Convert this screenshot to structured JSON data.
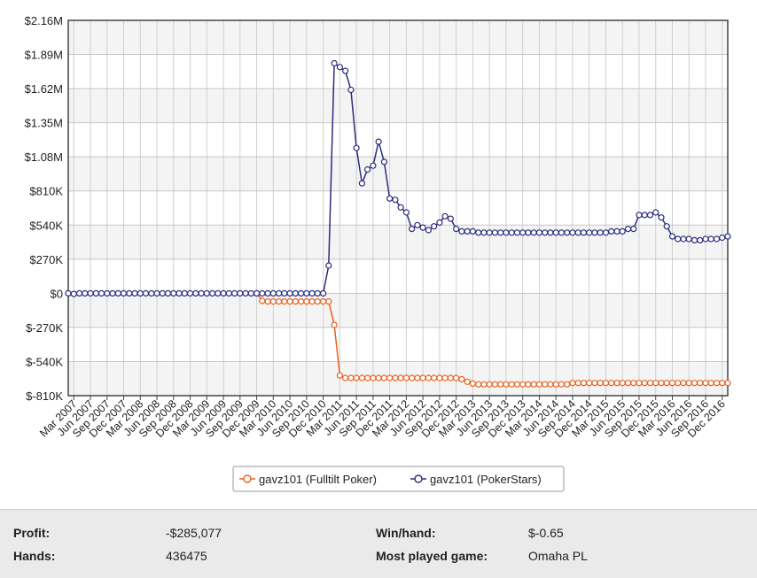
{
  "chart_data": {
    "type": "line",
    "y_ticks": [
      "$2.16M",
      "$1.89M",
      "$1.62M",
      "$1.35M",
      "$1.08M",
      "$810K",
      "$540K",
      "$270K",
      "$0",
      "$-270K",
      "$-540K",
      "$-810K"
    ],
    "y_tick_values": [
      2160000,
      1890000,
      1620000,
      1350000,
      1080000,
      810000,
      540000,
      270000,
      0,
      -270000,
      -540000,
      -810000
    ],
    "ylim": [
      -810000,
      2160000
    ],
    "x_labels": [
      "Mar 2007",
      "Jun 2007",
      "Sep 2007",
      "Dec 2007",
      "Mar 2008",
      "Jun 2008",
      "Sep 2008",
      "Dec 2008",
      "Mar 2009",
      "Jun 2009",
      "Sep 2009",
      "Dec 2009",
      "Mar 2010",
      "Jun 2010",
      "Sep 2010",
      "Dec 2010",
      "Mar 2011",
      "Jun 2011",
      "Sep 2011",
      "Dec 2011",
      "Mar 2012",
      "Jun 2012",
      "Sep 2012",
      "Dec 2012",
      "Mar 2013",
      "Jun 2013",
      "Sep 2013",
      "Dec 2013",
      "Mar 2014",
      "Jun 2014",
      "Sep 2014",
      "Dec 2014",
      "Mar 2015",
      "Jun 2015",
      "Sep 2015",
      "Dec 2015",
      "Mar 2016",
      "Jun 2016",
      "Sep 2016",
      "Dec 2016"
    ],
    "grid": true,
    "legend_position": "bottom",
    "series": [
      {
        "name": "gavz101 (Fulltilt Poker)",
        "color": "#e8601c",
        "points": [
          [
            "Dec 2009",
            0
          ],
          [
            "Jan 2010",
            -60000
          ],
          [
            "Feb 2010",
            -65000
          ],
          [
            "Mar 2010",
            -65000
          ],
          [
            "Apr 2010",
            -65000
          ],
          [
            "May 2010",
            -65000
          ],
          [
            "Jun 2010",
            -65000
          ],
          [
            "Jul 2010",
            -65000
          ],
          [
            "Aug 2010",
            -65000
          ],
          [
            "Sep 2010",
            -65000
          ],
          [
            "Oct 2010",
            -65000
          ],
          [
            "Nov 2010",
            -65000
          ],
          [
            "Dec 2010",
            -65000
          ],
          [
            "Jan 2011",
            -65000
          ],
          [
            "Feb 2011",
            -250000
          ],
          [
            "Mar 2011",
            -650000
          ],
          [
            "Apr 2011",
            -670000
          ],
          [
            "May 2011",
            -670000
          ],
          [
            "Jun 2011",
            -670000
          ],
          [
            "Jul 2011",
            -670000
          ],
          [
            "Aug 2011",
            -670000
          ],
          [
            "Sep 2011",
            -670000
          ],
          [
            "Oct 2011",
            -670000
          ],
          [
            "Nov 2011",
            -670000
          ],
          [
            "Dec 2011",
            -670000
          ],
          [
            "Jan 2012",
            -670000
          ],
          [
            "Feb 2012",
            -670000
          ],
          [
            "Mar 2012",
            -670000
          ],
          [
            "Apr 2012",
            -670000
          ],
          [
            "May 2012",
            -670000
          ],
          [
            "Jun 2012",
            -670000
          ],
          [
            "Jul 2012",
            -670000
          ],
          [
            "Aug 2012",
            -670000
          ],
          [
            "Sep 2012",
            -670000
          ],
          [
            "Oct 2012",
            -670000
          ],
          [
            "Nov 2012",
            -670000
          ],
          [
            "Dec 2012",
            -670000
          ],
          [
            "Jan 2013",
            -680000
          ],
          [
            "Feb 2013",
            -700000
          ],
          [
            "Mar 2013",
            -715000
          ],
          [
            "Apr 2013",
            -720000
          ],
          [
            "May 2013",
            -720000
          ],
          [
            "Jun 2013",
            -720000
          ],
          [
            "Jul 2013",
            -720000
          ],
          [
            "Aug 2013",
            -720000
          ],
          [
            "Sep 2013",
            -720000
          ],
          [
            "Oct 2013",
            -720000
          ],
          [
            "Nov 2013",
            -720000
          ],
          [
            "Dec 2013",
            -720000
          ],
          [
            "Jan 2014",
            -720000
          ],
          [
            "Feb 2014",
            -720000
          ],
          [
            "Mar 2014",
            -720000
          ],
          [
            "Apr 2014",
            -720000
          ],
          [
            "May 2014",
            -720000
          ],
          [
            "Jun 2014",
            -720000
          ],
          [
            "Jul 2014",
            -720000
          ],
          [
            "Aug 2014",
            -720000
          ],
          [
            "Sep 2014",
            -710000
          ],
          [
            "Oct 2014",
            -710000
          ],
          [
            "Nov 2014",
            -710000
          ],
          [
            "Dec 2014",
            -710000
          ],
          [
            "Jan 2015",
            -710000
          ],
          [
            "Feb 2015",
            -710000
          ],
          [
            "Mar 2015",
            -710000
          ],
          [
            "Apr 2015",
            -710000
          ],
          [
            "May 2015",
            -710000
          ],
          [
            "Jun 2015",
            -710000
          ],
          [
            "Jul 2015",
            -710000
          ],
          [
            "Aug 2015",
            -710000
          ],
          [
            "Sep 2015",
            -710000
          ],
          [
            "Oct 2015",
            -710000
          ],
          [
            "Nov 2015",
            -710000
          ],
          [
            "Dec 2015",
            -710000
          ],
          [
            "Jan 2016",
            -710000
          ],
          [
            "Feb 2016",
            -710000
          ],
          [
            "Mar 2016",
            -710000
          ],
          [
            "Apr 2016",
            -710000
          ],
          [
            "May 2016",
            -710000
          ],
          [
            "Jun 2016",
            -710000
          ],
          [
            "Jul 2016",
            -710000
          ],
          [
            "Aug 2016",
            -710000
          ],
          [
            "Sep 2016",
            -710000
          ],
          [
            "Oct 2016",
            -710000
          ],
          [
            "Nov 2016",
            -710000
          ],
          [
            "Dec 2016",
            -710000
          ],
          [
            "Jan 2017",
            -710000
          ]
        ]
      },
      {
        "name": "gavz101 (PokerStars)",
        "color": "#2b2c7c",
        "points": [
          [
            "Feb 2007",
            0
          ],
          [
            "Mar 2007",
            -5000
          ],
          [
            "Apr 2007",
            0
          ],
          [
            "May 2007",
            0
          ],
          [
            "Jun 2007",
            0
          ],
          [
            "Jul 2007",
            0
          ],
          [
            "Aug 2007",
            0
          ],
          [
            "Sep 2007",
            0
          ],
          [
            "Oct 2007",
            0
          ],
          [
            "Nov 2007",
            0
          ],
          [
            "Dec 2007",
            0
          ],
          [
            "Jan 2008",
            0
          ],
          [
            "Feb 2008",
            0
          ],
          [
            "Mar 2008",
            0
          ],
          [
            "Apr 2008",
            0
          ],
          [
            "May 2008",
            0
          ],
          [
            "Jun 2008",
            0
          ],
          [
            "Jul 2008",
            0
          ],
          [
            "Aug 2008",
            0
          ],
          [
            "Sep 2008",
            0
          ],
          [
            "Oct 2008",
            0
          ],
          [
            "Nov 2008",
            0
          ],
          [
            "Dec 2008",
            0
          ],
          [
            "Jan 2009",
            0
          ],
          [
            "Feb 2009",
            0
          ],
          [
            "Mar 2009",
            0
          ],
          [
            "Apr 2009",
            0
          ],
          [
            "May 2009",
            0
          ],
          [
            "Jun 2009",
            0
          ],
          [
            "Jul 2009",
            0
          ],
          [
            "Aug 2009",
            0
          ],
          [
            "Sep 2009",
            0
          ],
          [
            "Oct 2009",
            0
          ],
          [
            "Nov 2009",
            0
          ],
          [
            "Dec 2009",
            0
          ],
          [
            "Jan 2010",
            0
          ],
          [
            "Feb 2010",
            0
          ],
          [
            "Mar 2010",
            0
          ],
          [
            "Apr 2010",
            0
          ],
          [
            "May 2010",
            0
          ],
          [
            "Jun 2010",
            0
          ],
          [
            "Jul 2010",
            0
          ],
          [
            "Aug 2010",
            0
          ],
          [
            "Sep 2010",
            0
          ],
          [
            "Oct 2010",
            0
          ],
          [
            "Nov 2010",
            0
          ],
          [
            "Dec 2010",
            0
          ],
          [
            "Jan 2011",
            220000
          ],
          [
            "Feb 2011",
            1820000
          ],
          [
            "Mar 2011",
            1790000
          ],
          [
            "Apr 2011",
            1760000
          ],
          [
            "May 2011",
            1610000
          ],
          [
            "Jun 2011",
            1150000
          ],
          [
            "Jul 2011",
            870000
          ],
          [
            "Aug 2011",
            980000
          ],
          [
            "Sep 2011",
            1010000
          ],
          [
            "Oct 2011",
            1200000
          ],
          [
            "Nov 2011",
            1040000
          ],
          [
            "Dec 2011",
            750000
          ],
          [
            "Jan 2012",
            740000
          ],
          [
            "Feb 2012",
            680000
          ],
          [
            "Mar 2012",
            640000
          ],
          [
            "Apr 2012",
            510000
          ],
          [
            "May 2012",
            540000
          ],
          [
            "Jun 2012",
            520000
          ],
          [
            "Jul 2012",
            500000
          ],
          [
            "Aug 2012",
            530000
          ],
          [
            "Sep 2012",
            560000
          ],
          [
            "Oct 2012",
            610000
          ],
          [
            "Nov 2012",
            590000
          ],
          [
            "Dec 2012",
            510000
          ],
          [
            "Jan 2013",
            490000
          ],
          [
            "Feb 2013",
            490000
          ],
          [
            "Mar 2013",
            490000
          ],
          [
            "Apr 2013",
            480000
          ],
          [
            "May 2013",
            480000
          ],
          [
            "Jun 2013",
            480000
          ],
          [
            "Jul 2013",
            480000
          ],
          [
            "Aug 2013",
            480000
          ],
          [
            "Sep 2013",
            480000
          ],
          [
            "Oct 2013",
            480000
          ],
          [
            "Nov 2013",
            480000
          ],
          [
            "Dec 2013",
            480000
          ],
          [
            "Jan 2014",
            480000
          ],
          [
            "Feb 2014",
            480000
          ],
          [
            "Mar 2014",
            480000
          ],
          [
            "Apr 2014",
            480000
          ],
          [
            "May 2014",
            480000
          ],
          [
            "Jun 2014",
            480000
          ],
          [
            "Jul 2014",
            480000
          ],
          [
            "Aug 2014",
            480000
          ],
          [
            "Sep 2014",
            480000
          ],
          [
            "Oct 2014",
            480000
          ],
          [
            "Nov 2014",
            480000
          ],
          [
            "Dec 2014",
            480000
          ],
          [
            "Jan 2015",
            480000
          ],
          [
            "Feb 2015",
            480000
          ],
          [
            "Mar 2015",
            480000
          ],
          [
            "Apr 2015",
            490000
          ],
          [
            "May 2015",
            490000
          ],
          [
            "Jun 2015",
            490000
          ],
          [
            "Jul 2015",
            510000
          ],
          [
            "Aug 2015",
            510000
          ],
          [
            "Sep 2015",
            620000
          ],
          [
            "Oct 2015",
            620000
          ],
          [
            "Nov 2015",
            620000
          ],
          [
            "Dec 2015",
            640000
          ],
          [
            "Jan 2016",
            600000
          ],
          [
            "Feb 2016",
            530000
          ],
          [
            "Mar 2016",
            450000
          ],
          [
            "Apr 2016",
            430000
          ],
          [
            "May 2016",
            430000
          ],
          [
            "Jun 2016",
            430000
          ],
          [
            "Jul 2016",
            420000
          ],
          [
            "Aug 2016",
            420000
          ],
          [
            "Sep 2016",
            430000
          ],
          [
            "Oct 2016",
            430000
          ],
          [
            "Nov 2016",
            430000
          ],
          [
            "Dec 2016",
            440000
          ],
          [
            "Jan 2017",
            450000
          ]
        ]
      }
    ]
  },
  "stats": {
    "profit_label": "Profit:",
    "profit_value": "-$285,077",
    "hands_label": "Hands:",
    "hands_value": "436475",
    "winhand_label": "Win/hand:",
    "winhand_value": "$-0.65",
    "game_label": "Most played game:",
    "game_value": "Omaha PL"
  }
}
